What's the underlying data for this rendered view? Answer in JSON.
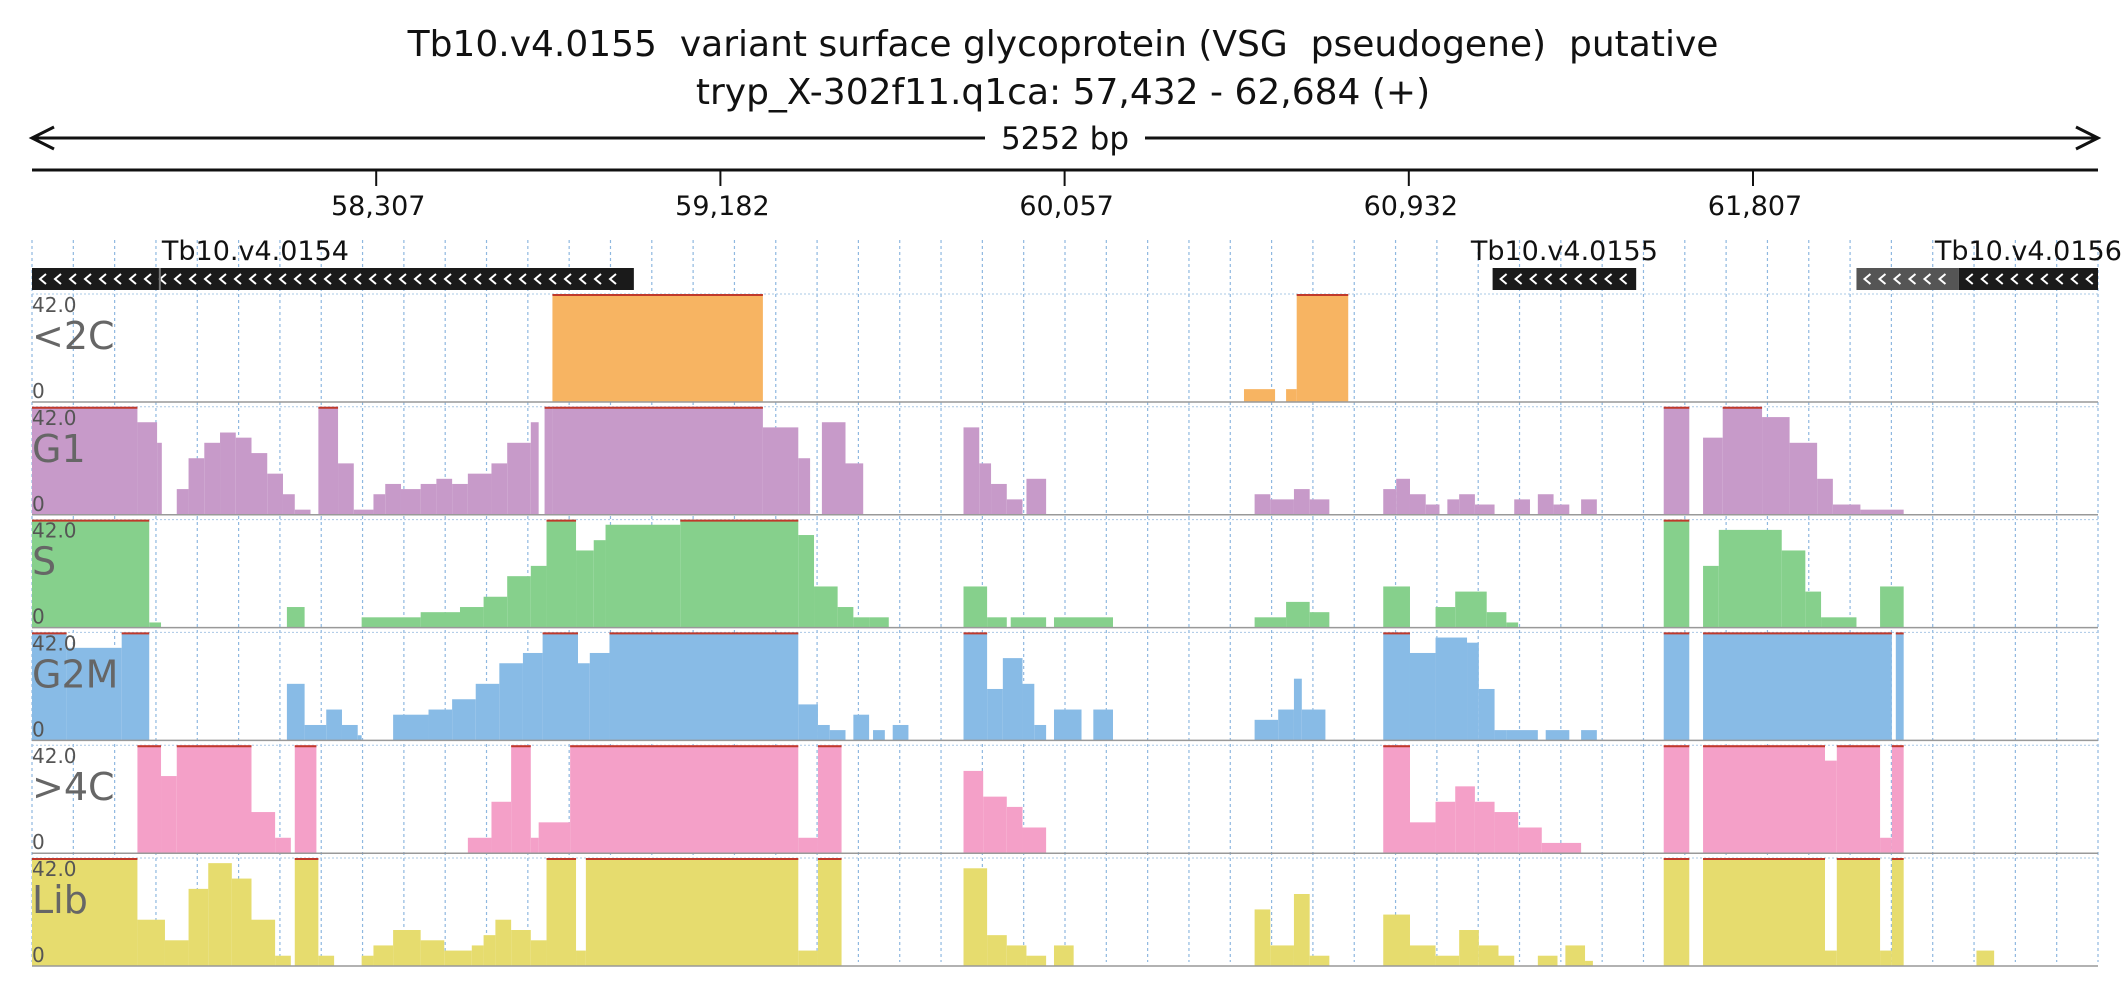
{
  "title": "Tb10.v4.0155  variant surface glycoprotein (VSG  pseudogene)  putative",
  "subtitle": "tryp_X-302f11.q1ca: 57,432 - 62,684 (+)",
  "length_label": "5252 bp",
  "chart_data": {
    "type": "area",
    "region": {
      "start": 57432,
      "end": 62684
    },
    "ticks": [
      {
        "pos": 58307,
        "label": "58,307"
      },
      {
        "pos": 59182,
        "label": "59,182"
      },
      {
        "pos": 60057,
        "label": "60,057"
      },
      {
        "pos": 60932,
        "label": "60,932"
      },
      {
        "pos": 61807,
        "label": "61,807"
      }
    ],
    "genes": [
      {
        "name": "Tb10.v4.0154",
        "start": 57432,
        "end": 58962,
        "strand": "-",
        "color": "#1a1a1a",
        "boundary": 57757
      },
      {
        "name": "Tb10.v4.0155",
        "start": 61145,
        "end": 61510,
        "strand": "-",
        "color": "#1a1a1a"
      },
      {
        "name": "",
        "start": 62070,
        "end": 62330,
        "strand": "-",
        "color": "#555555"
      },
      {
        "name": "Tb10.v4.0156",
        "start": 62330,
        "end": 62684,
        "strand": "-",
        "color": "#1a1a1a"
      }
    ],
    "ylim": [
      0,
      42.0
    ],
    "y_max_label": "42.0",
    "y_min_label": "0",
    "tracks": [
      {
        "name": "<2C",
        "color": "#f7b462",
        "segments": [
          [
            58755,
            59290,
            42
          ],
          [
            60513,
            60592,
            5
          ],
          [
            60620,
            60647,
            5
          ],
          [
            60647,
            60778,
            42
          ]
        ]
      },
      {
        "name": "G1",
        "color": "#c79ac9",
        "segments": [
          [
            57432,
            57700,
            42
          ],
          [
            57700,
            57750,
            36
          ],
          [
            57750,
            57762,
            28
          ],
          [
            57800,
            57830,
            10
          ],
          [
            57830,
            57870,
            22
          ],
          [
            57870,
            57910,
            28
          ],
          [
            57910,
            57950,
            32
          ],
          [
            57950,
            57990,
            30
          ],
          [
            57990,
            58030,
            24
          ],
          [
            58030,
            58070,
            16
          ],
          [
            58070,
            58100,
            8
          ],
          [
            58100,
            58140,
            2
          ],
          [
            58160,
            58210,
            42
          ],
          [
            58210,
            58250,
            20
          ],
          [
            58250,
            58300,
            2
          ],
          [
            58300,
            58330,
            8
          ],
          [
            58330,
            58370,
            12
          ],
          [
            58370,
            58420,
            10
          ],
          [
            58420,
            58460,
            12
          ],
          [
            58460,
            58500,
            14
          ],
          [
            58500,
            58540,
            12
          ],
          [
            58540,
            58600,
            16
          ],
          [
            58600,
            58640,
            20
          ],
          [
            58640,
            58700,
            28
          ],
          [
            58700,
            58720,
            36
          ],
          [
            58735,
            58755,
            42
          ],
          [
            58755,
            59290,
            42
          ],
          [
            59290,
            59380,
            34
          ],
          [
            59380,
            59410,
            22
          ],
          [
            59440,
            59500,
            36
          ],
          [
            59500,
            59545,
            20
          ],
          [
            59800,
            59840,
            34
          ],
          [
            59840,
            59870,
            20
          ],
          [
            59870,
            59910,
            12
          ],
          [
            59910,
            59950,
            6
          ],
          [
            59960,
            60010,
            14
          ],
          [
            60540,
            60580,
            8
          ],
          [
            60580,
            60640,
            6
          ],
          [
            60640,
            60680,
            10
          ],
          [
            60680,
            60730,
            6
          ],
          [
            60867,
            60900,
            10
          ],
          [
            60900,
            60935,
            14
          ],
          [
            60935,
            60975,
            8
          ],
          [
            60975,
            61010,
            4
          ],
          [
            61030,
            61060,
            6
          ],
          [
            61060,
            61100,
            8
          ],
          [
            61100,
            61150,
            4
          ],
          [
            61200,
            61240,
            6
          ],
          [
            61260,
            61300,
            8
          ],
          [
            61300,
            61340,
            4
          ],
          [
            61370,
            61410,
            6
          ],
          [
            61580,
            61645,
            42
          ],
          [
            61680,
            61730,
            30
          ],
          [
            61730,
            61830,
            42
          ],
          [
            61830,
            61900,
            38
          ],
          [
            61900,
            61970,
            28
          ],
          [
            61970,
            62010,
            14
          ],
          [
            62010,
            62080,
            4
          ],
          [
            62080,
            62190,
            2
          ]
        ]
      },
      {
        "name": "S",
        "color": "#86d08c",
        "segments": [
          [
            57432,
            57730,
            42
          ],
          [
            57730,
            57760,
            2
          ],
          [
            58080,
            58125,
            8
          ],
          [
            58270,
            58420,
            4
          ],
          [
            58420,
            58520,
            6
          ],
          [
            58520,
            58580,
            8
          ],
          [
            58580,
            58640,
            12
          ],
          [
            58640,
            58700,
            20
          ],
          [
            58700,
            58740,
            24
          ],
          [
            58740,
            58815,
            42
          ],
          [
            58815,
            58860,
            30
          ],
          [
            58860,
            58890,
            34
          ],
          [
            58890,
            59080,
            40
          ],
          [
            59080,
            59380,
            42
          ],
          [
            59380,
            59420,
            36
          ],
          [
            59420,
            59480,
            16
          ],
          [
            59480,
            59520,
            8
          ],
          [
            59520,
            59560,
            4
          ],
          [
            59560,
            59610,
            4
          ],
          [
            59800,
            59860,
            16
          ],
          [
            59860,
            59910,
            4
          ],
          [
            59920,
            60010,
            4
          ],
          [
            60030,
            60180,
            4
          ],
          [
            60540,
            60620,
            4
          ],
          [
            60620,
            60680,
            10
          ],
          [
            60680,
            60730,
            6
          ],
          [
            60867,
            60935,
            16
          ],
          [
            61000,
            61050,
            8
          ],
          [
            61050,
            61130,
            14
          ],
          [
            61130,
            61180,
            6
          ],
          [
            61180,
            61210,
            2
          ],
          [
            61580,
            61645,
            42
          ],
          [
            61680,
            61720,
            24
          ],
          [
            61720,
            61880,
            38
          ],
          [
            61880,
            61940,
            30
          ],
          [
            61940,
            61980,
            14
          ],
          [
            61980,
            62070,
            4
          ],
          [
            62130,
            62190,
            16
          ]
        ]
      },
      {
        "name": "G2M",
        "color": "#88bbe6",
        "segments": [
          [
            57432,
            57520,
            42
          ],
          [
            57520,
            57660,
            36
          ],
          [
            57660,
            57730,
            42
          ],
          [
            58080,
            58125,
            22
          ],
          [
            58125,
            58180,
            6
          ],
          [
            58180,
            58220,
            12
          ],
          [
            58220,
            58260,
            6
          ],
          [
            58260,
            58270,
            2
          ],
          [
            58350,
            58440,
            10
          ],
          [
            58440,
            58500,
            12
          ],
          [
            58500,
            58560,
            16
          ],
          [
            58560,
            58620,
            22
          ],
          [
            58620,
            58680,
            30
          ],
          [
            58680,
            58730,
            34
          ],
          [
            58730,
            58820,
            42
          ],
          [
            58820,
            58850,
            30
          ],
          [
            58850,
            58900,
            34
          ],
          [
            58900,
            59380,
            42
          ],
          [
            59380,
            59430,
            14
          ],
          [
            59430,
            59460,
            6
          ],
          [
            59460,
            59500,
            4
          ],
          [
            59520,
            59560,
            10
          ],
          [
            59570,
            59600,
            4
          ],
          [
            59620,
            59660,
            6
          ],
          [
            59800,
            59860,
            42
          ],
          [
            59860,
            59900,
            20
          ],
          [
            59900,
            59950,
            32
          ],
          [
            59950,
            59980,
            22
          ],
          [
            59980,
            60010,
            6
          ],
          [
            60030,
            60100,
            12
          ],
          [
            60130,
            60180,
            12
          ],
          [
            60540,
            60600,
            8
          ],
          [
            60600,
            60640,
            12
          ],
          [
            60640,
            60660,
            24
          ],
          [
            60660,
            60720,
            12
          ],
          [
            60867,
            60935,
            42
          ],
          [
            60935,
            61000,
            34
          ],
          [
            61000,
            61080,
            40
          ],
          [
            61080,
            61110,
            38
          ],
          [
            61110,
            61150,
            20
          ],
          [
            61150,
            61180,
            4
          ],
          [
            61180,
            61260,
            4
          ],
          [
            61280,
            61340,
            4
          ],
          [
            61370,
            61410,
            4
          ],
          [
            61580,
            61645,
            42
          ],
          [
            61680,
            62160,
            42
          ],
          [
            62170,
            62190,
            42
          ]
        ]
      },
      {
        "name": ">4C",
        "color": "#f4a0c8",
        "segments": [
          [
            57700,
            57760,
            42
          ],
          [
            57760,
            57800,
            30
          ],
          [
            57800,
            57990,
            42
          ],
          [
            57990,
            58050,
            16
          ],
          [
            58050,
            58090,
            6
          ],
          [
            58100,
            58155,
            42
          ],
          [
            58540,
            58600,
            6
          ],
          [
            58600,
            58650,
            20
          ],
          [
            58650,
            58700,
            42
          ],
          [
            58700,
            58720,
            6
          ],
          [
            58720,
            58800,
            12
          ],
          [
            58800,
            59380,
            42
          ],
          [
            59380,
            59430,
            6
          ],
          [
            59430,
            59490,
            42
          ],
          [
            59800,
            59850,
            32
          ],
          [
            59850,
            59910,
            22
          ],
          [
            59910,
            59950,
            18
          ],
          [
            59950,
            60010,
            10
          ],
          [
            60867,
            60935,
            42
          ],
          [
            60935,
            61000,
            12
          ],
          [
            61000,
            61050,
            20
          ],
          [
            61050,
            61100,
            26
          ],
          [
            61100,
            61150,
            20
          ],
          [
            61150,
            61210,
            16
          ],
          [
            61210,
            61270,
            10
          ],
          [
            61270,
            61370,
            4
          ],
          [
            61580,
            61645,
            42
          ],
          [
            61680,
            61990,
            42
          ],
          [
            61990,
            62020,
            36
          ],
          [
            62020,
            62130,
            42
          ],
          [
            62130,
            62160,
            6
          ],
          [
            62160,
            62190,
            42
          ]
        ]
      },
      {
        "name": "Lib",
        "color": "#e6dc6e",
        "segments": [
          [
            57432,
            57700,
            42
          ],
          [
            57700,
            57770,
            18
          ],
          [
            57770,
            57830,
            10
          ],
          [
            57830,
            57880,
            30
          ],
          [
            57880,
            57940,
            40
          ],
          [
            57940,
            57990,
            34
          ],
          [
            57990,
            58050,
            18
          ],
          [
            58050,
            58090,
            4
          ],
          [
            58100,
            58160,
            42
          ],
          [
            58160,
            58200,
            4
          ],
          [
            58270,
            58300,
            4
          ],
          [
            58300,
            58350,
            8
          ],
          [
            58350,
            58420,
            14
          ],
          [
            58420,
            58480,
            10
          ],
          [
            58480,
            58550,
            6
          ],
          [
            58550,
            58580,
            8
          ],
          [
            58580,
            58610,
            12
          ],
          [
            58610,
            58650,
            18
          ],
          [
            58650,
            58700,
            14
          ],
          [
            58700,
            58740,
            10
          ],
          [
            58740,
            58815,
            42
          ],
          [
            58815,
            58840,
            6
          ],
          [
            58840,
            59380,
            42
          ],
          [
            59380,
            59430,
            6
          ],
          [
            59430,
            59490,
            42
          ],
          [
            59800,
            59860,
            38
          ],
          [
            59860,
            59910,
            12
          ],
          [
            59910,
            59960,
            8
          ],
          [
            59960,
            60010,
            4
          ],
          [
            60030,
            60080,
            8
          ],
          [
            60540,
            60580,
            22
          ],
          [
            60580,
            60640,
            8
          ],
          [
            60640,
            60680,
            28
          ],
          [
            60680,
            60730,
            4
          ],
          [
            60867,
            60935,
            20
          ],
          [
            60935,
            61000,
            8
          ],
          [
            61000,
            61060,
            4
          ],
          [
            61060,
            61110,
            14
          ],
          [
            61110,
            61160,
            8
          ],
          [
            61160,
            61200,
            4
          ],
          [
            61260,
            61310,
            4
          ],
          [
            61330,
            61380,
            8
          ],
          [
            61380,
            61400,
            2
          ],
          [
            61580,
            61645,
            42
          ],
          [
            61680,
            61990,
            42
          ],
          [
            61990,
            62020,
            6
          ],
          [
            62020,
            62130,
            42
          ],
          [
            62130,
            62160,
            6
          ],
          [
            62160,
            62190,
            42
          ],
          [
            62375,
            62420,
            6
          ]
        ]
      }
    ]
  }
}
